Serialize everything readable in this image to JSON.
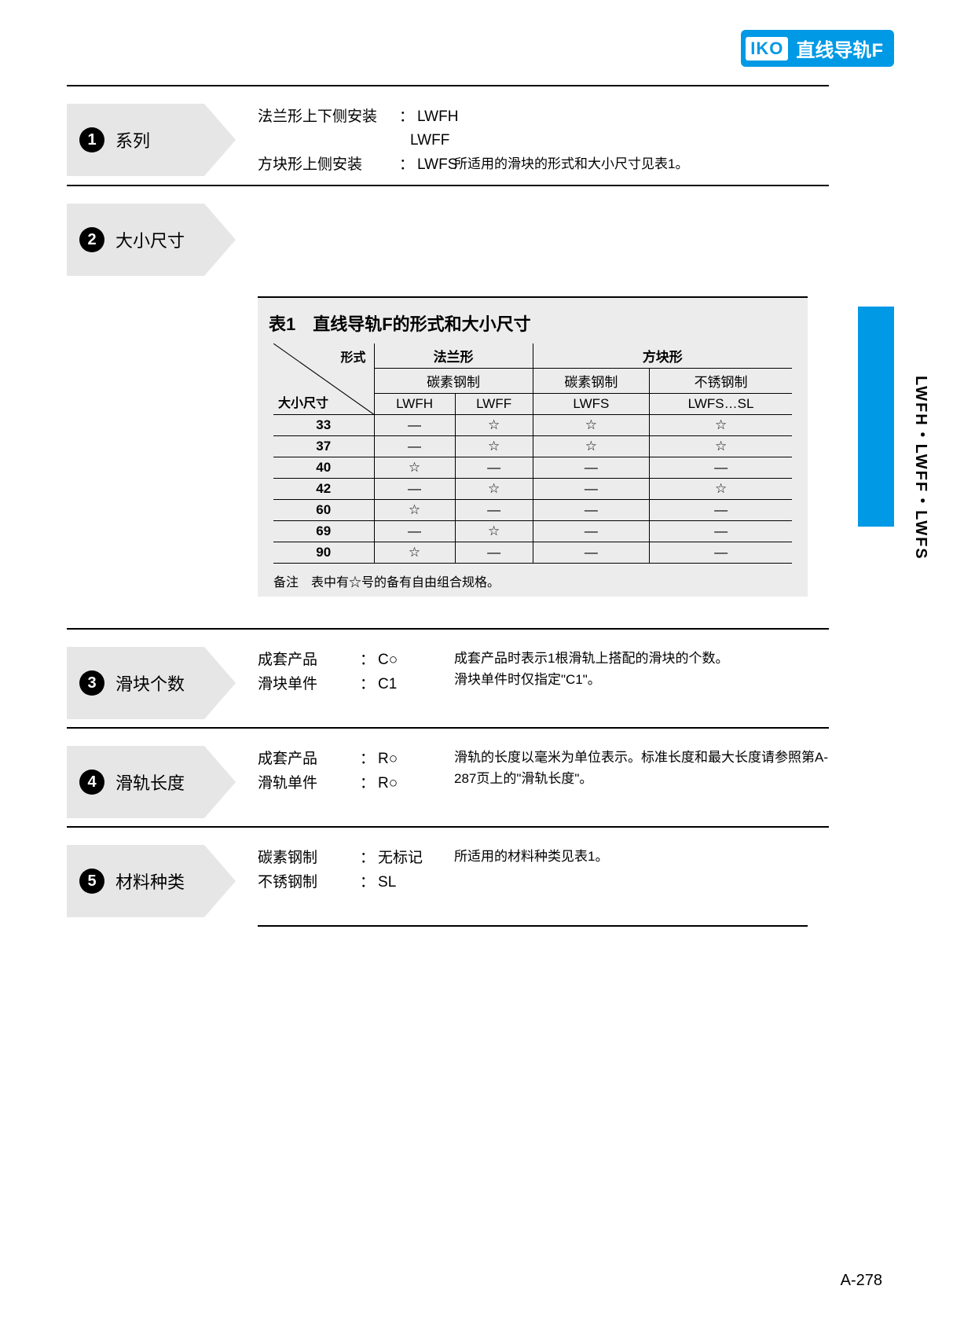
{
  "header": {
    "logo": "IKO",
    "title": "直线导轨F"
  },
  "sideText": "LWFH・LWFF・LWFS",
  "pageNumber": "A-278",
  "sections": [
    {
      "num": "1",
      "title": "系列",
      "kv": [
        [
          "法兰形上下侧安装",
          "LWFH"
        ],
        [
          "",
          "LWFF"
        ],
        [
          "方块形上侧安装",
          "LWFS"
        ]
      ],
      "note": "所适用的滑块的形式和大小尺寸见表1。"
    },
    {
      "num": "2",
      "title": "大小尺寸",
      "kv": [],
      "note": ""
    },
    {
      "num": "3",
      "title": "滑块个数",
      "kv": [
        [
          "成套产品",
          "C○"
        ],
        [
          "滑块单件",
          "C1"
        ]
      ],
      "note": "成套产品时表示1根滑轨上搭配的滑块的个数。\n滑块单件时仅指定\"C1\"。"
    },
    {
      "num": "4",
      "title": "滑轨长度",
      "kv": [
        [
          "成套产品",
          "R○"
        ],
        [
          "滑轨单件",
          "R○"
        ]
      ],
      "note": "滑轨的长度以毫米为单位表示。标准长度和最大长度请参照第A-287页上的\"滑轨长度\"。"
    },
    {
      "num": "5",
      "title": "材料种类",
      "kv": [
        [
          "碳素钢制",
          "无标记"
        ],
        [
          "不锈钢制",
          "SL"
        ]
      ],
      "note": "所适用的材料种类见表1。"
    }
  ],
  "table": {
    "title": "表1　直线导轨F的形式和大小尺寸",
    "diagTop": "形式",
    "diagBottom": "大小尺寸",
    "group1": "法兰形",
    "group2": "方块形",
    "sub1": "碳素钢制",
    "sub2": "碳素钢制",
    "sub3": "不锈钢制",
    "cols": [
      "LWFH",
      "LWFF",
      "LWFS",
      "LWFS…SL"
    ],
    "rows": [
      {
        "size": "33",
        "v": [
          "—",
          "☆",
          "☆",
          "☆"
        ]
      },
      {
        "size": "37",
        "v": [
          "—",
          "☆",
          "☆",
          "☆"
        ]
      },
      {
        "size": "40",
        "v": [
          "☆",
          "—",
          "—",
          "—"
        ]
      },
      {
        "size": "42",
        "v": [
          "—",
          "☆",
          "—",
          "☆"
        ]
      },
      {
        "size": "60",
        "v": [
          "☆",
          "—",
          "—",
          "—"
        ]
      },
      {
        "size": "69",
        "v": [
          "—",
          "☆",
          "—",
          "—"
        ]
      },
      {
        "size": "90",
        "v": [
          "☆",
          "—",
          "—",
          "—"
        ]
      }
    ],
    "footnote": "备注　表中有☆号的备有自由组合规格。"
  }
}
